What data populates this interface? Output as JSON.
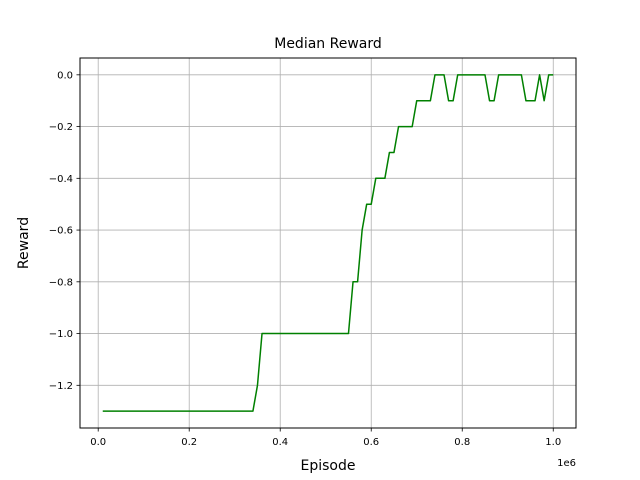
{
  "chart_data": {
    "type": "line",
    "title": "Median Reward",
    "xlabel": "Episode",
    "ylabel": "Reward",
    "x_offset_label": "1e6",
    "xlim": [
      -40000,
      1050000
    ],
    "ylim": [
      -1.365,
      0.065
    ],
    "x_ticks": [
      {
        "value": 0.0,
        "label": "0.0"
      },
      {
        "value": 200000,
        "label": "0.2"
      },
      {
        "value": 400000,
        "label": "0.4"
      },
      {
        "value": 600000,
        "label": "0.6"
      },
      {
        "value": 800000,
        "label": "0.8"
      },
      {
        "value": 1000000,
        "label": "1.0"
      }
    ],
    "y_ticks": [
      {
        "value": 0.0,
        "label": "0.0"
      },
      {
        "value": -0.2,
        "label": "−0.2"
      },
      {
        "value": -0.4,
        "label": "−0.4"
      },
      {
        "value": -0.6,
        "label": "−0.6"
      },
      {
        "value": -0.8,
        "label": "−0.8"
      },
      {
        "value": -1.0,
        "label": "−1.0"
      },
      {
        "value": -1.2,
        "label": "−1.2"
      }
    ],
    "grid": true,
    "series": [
      {
        "color": "#008000",
        "x": [
          10000,
          340000,
          350000,
          360000,
          550000,
          560000,
          570000,
          580000,
          590000,
          600000,
          610000,
          620000,
          630000,
          640000,
          650000,
          660000,
          670000,
          680000,
          690000,
          700000,
          710000,
          720000,
          730000,
          740000,
          750000,
          760000,
          770000,
          780000,
          790000,
          800000,
          810000,
          820000,
          830000,
          840000,
          850000,
          860000,
          870000,
          880000,
          890000,
          900000,
          910000,
          920000,
          930000,
          940000,
          950000,
          960000,
          970000,
          980000,
          990000,
          1000000
        ],
        "y": [
          -1.3,
          -1.3,
          -1.2,
          -1.0,
          -1.0,
          -0.8,
          -0.8,
          -0.6,
          -0.5,
          -0.5,
          -0.4,
          -0.4,
          -0.4,
          -0.3,
          -0.3,
          -0.2,
          -0.2,
          -0.2,
          -0.2,
          -0.1,
          -0.1,
          -0.1,
          -0.1,
          0.0,
          0.0,
          0.0,
          -0.1,
          -0.1,
          0.0,
          0.0,
          0.0,
          0.0,
          0.0,
          0.0,
          0.0,
          -0.1,
          -0.1,
          0.0,
          0.0,
          0.0,
          0.0,
          0.0,
          0.0,
          -0.1,
          -0.1,
          -0.1,
          0.0,
          -0.1,
          0.0,
          0.0
        ]
      }
    ]
  }
}
